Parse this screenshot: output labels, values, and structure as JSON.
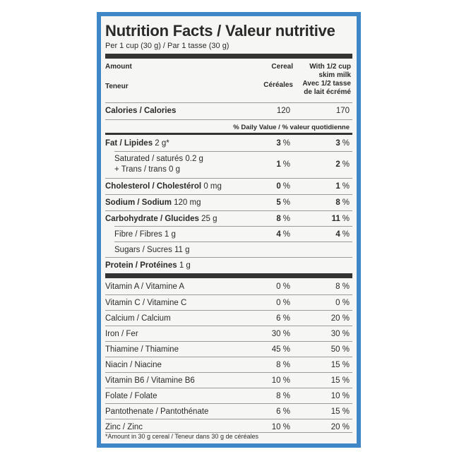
{
  "title": "Nutrition Facts / Valeur nutritive",
  "serving": "Per 1 cup (30 g) / Par 1 tasse (30 g)",
  "header": {
    "amount": "Amount",
    "teneur": "Teneur",
    "col1_en": "Cereal",
    "col1_fr": "Céréales",
    "col2_line1": "With 1/2 cup",
    "col2_line2": "skim milk",
    "col2_line3": "Avec 1/2 tasse",
    "col2_line4": "de lait écrémé"
  },
  "calories": {
    "label": "Calories / Calories",
    "cereal": "120",
    "milk": "170"
  },
  "dv_header": "% Daily Value / % valeur quotidienne",
  "nutrients": [
    {
      "label": "Fat / Lipides",
      "amount": "2 g*",
      "cereal": "3",
      "milk": "3"
    },
    {
      "label": "Saturated / saturés 0.2 g",
      "label2": "+ Trans / trans 0 g",
      "cereal": "1",
      "milk": "2"
    },
    {
      "label": "Cholesterol / Cholestérol",
      "amount": "0 mg",
      "cereal": "0",
      "milk": "1"
    },
    {
      "label": "Sodium / Sodium",
      "amount": "120 mg",
      "cereal": "5",
      "milk": "8"
    },
    {
      "label": "Carbohydrate / Glucides",
      "amount": "25 g",
      "cereal": "8",
      "milk": "11"
    },
    {
      "label": "Fibre / Fibres 1 g",
      "cereal": "4",
      "milk": "4"
    },
    {
      "label": "Sugars / Sucres 11 g"
    },
    {
      "label": "Protein / Protéines",
      "amount": "1 g"
    }
  ],
  "percent_sign": "%",
  "vitamins": [
    {
      "label": "Vitamin A / Vitamine A",
      "cereal": "0 %",
      "milk": "8 %"
    },
    {
      "label": "Vitamin C / Vitamine C",
      "cereal": "0 %",
      "milk": "0 %"
    },
    {
      "label": "Calcium / Calcium",
      "cereal": "6 %",
      "milk": "20 %"
    },
    {
      "label": "Iron / Fer",
      "cereal": "30 %",
      "milk": "30 %"
    },
    {
      "label": "Thiamine / Thiamine",
      "cereal": "45 %",
      "milk": "50 %"
    },
    {
      "label": "Niacin / Niacine",
      "cereal": "8 %",
      "milk": "15 %"
    },
    {
      "label": "Vitamin B6 / Vitamine B6",
      "cereal": "10 %",
      "milk": "15 %"
    },
    {
      "label": "Folate / Folate",
      "cereal": "8 %",
      "milk": "10 %"
    },
    {
      "label": "Pantothenate / Pantothénate",
      "cereal": "6 %",
      "milk": "15 %"
    },
    {
      "label": "Zinc / Zinc",
      "cereal": "10 %",
      "milk": "20 %"
    }
  ],
  "footnote": "*Amount in 30 g cereal / Teneur dans 30 g de céréales",
  "colors": {
    "border": "#3f86c6",
    "panel": "#f6f6f4",
    "text": "#2b2b2b"
  }
}
